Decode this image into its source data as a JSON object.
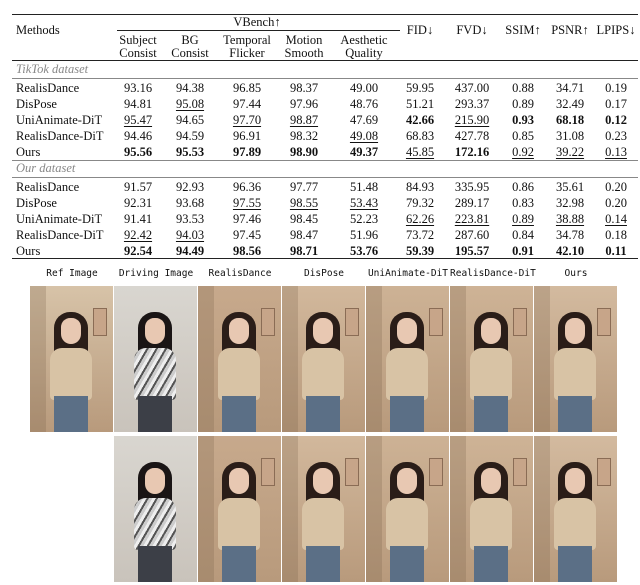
{
  "table": {
    "headers": {
      "methods": "Methods",
      "vbench": "VBench↑",
      "subject": [
        "Subject",
        "Consist"
      ],
      "bg": [
        "BG",
        "Consist"
      ],
      "temporal": [
        "Temporal",
        "Flicker"
      ],
      "motion": [
        "Motion",
        "Smooth"
      ],
      "aesthetic": [
        "Aesthetic",
        "Quality"
      ],
      "fid": "FID↓",
      "fvd": "FVD↓",
      "ssim": "SSIM↑",
      "psnr": "PSNR↑",
      "lpips": "LPIPS↓"
    },
    "sections": [
      {
        "title": "TikTok dataset",
        "rows": [
          {
            "name": "RealisDance",
            "vals": [
              "93.16",
              "94.38",
              "96.85",
              "98.37",
              "49.00",
              "59.95",
              "437.00",
              "0.88",
              "34.71",
              "0.19"
            ]
          },
          {
            "name": "DisPose",
            "vals": [
              "94.81",
              "95.08",
              "97.44",
              "97.96",
              "48.76",
              "51.21",
              "293.37",
              "0.89",
              "32.49",
              "0.17"
            ]
          },
          {
            "name": "UniAnimate-DiT",
            "vals": [
              "95.47",
              "94.65",
              "97.70",
              "98.87",
              "47.69",
              "42.66",
              "215.90",
              "0.93",
              "68.18",
              "0.12"
            ]
          },
          {
            "name": "RealisDance-DiT",
            "vals": [
              "94.46",
              "94.59",
              "96.91",
              "98.32",
              "49.08",
              "68.83",
              "427.78",
              "0.85",
              "31.08",
              "0.23"
            ]
          },
          {
            "name": "Ours",
            "vals": [
              "95.56",
              "95.53",
              "97.89",
              "98.90",
              "49.37",
              "45.85",
              "172.16",
              "0.92",
              "39.22",
              "0.13"
            ]
          }
        ]
      },
      {
        "title": "Our dataset",
        "rows": [
          {
            "name": "RealisDance",
            "vals": [
              "91.57",
              "92.93",
              "96.36",
              "97.77",
              "51.48",
              "84.93",
              "335.95",
              "0.86",
              "35.61",
              "0.20"
            ]
          },
          {
            "name": "DisPose",
            "vals": [
              "92.31",
              "93.68",
              "97.55",
              "98.55",
              "53.43",
              "79.32",
              "289.17",
              "0.83",
              "32.98",
              "0.20"
            ]
          },
          {
            "name": "UniAnimate-DiT",
            "vals": [
              "91.41",
              "93.53",
              "97.46",
              "98.45",
              "52.23",
              "62.26",
              "223.81",
              "0.89",
              "38.88",
              "0.14"
            ]
          },
          {
            "name": "RealisDance-DiT",
            "vals": [
              "92.42",
              "94.03",
              "97.45",
              "98.47",
              "51.96",
              "73.72",
              "287.60",
              "0.84",
              "34.78",
              "0.18"
            ]
          },
          {
            "name": "Ours",
            "vals": [
              "92.54",
              "94.49",
              "98.56",
              "98.71",
              "53.76",
              "59.39",
              "195.57",
              "0.91",
              "42.10",
              "0.11"
            ]
          }
        ]
      }
    ]
  },
  "figure": {
    "labels": [
      "Ref Image",
      "Driving Image",
      "RealisDance",
      "DisPose",
      "UniAnimate-DiT",
      "RealisDance-DiT",
      "Ours"
    ]
  }
}
